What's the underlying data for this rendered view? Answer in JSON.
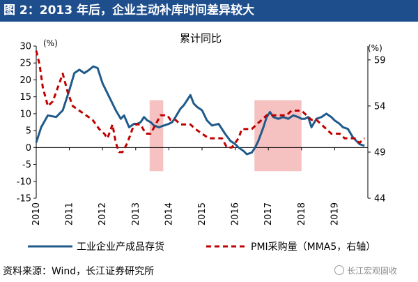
{
  "header": {
    "title": "图 2：2013 年后，企业主动补库时间差异较大"
  },
  "source": {
    "text": "资料来源：Wind，长江证券研究所"
  },
  "watermark": {
    "text": "长江宏观固收"
  },
  "colors": {
    "header_bg": "#1e4e8c",
    "series1": "#1f5a8a",
    "series2": "#c00000",
    "shade": "#f4b6b6"
  },
  "chart_data": {
    "type": "line",
    "title": "累计同比",
    "left_axis": {
      "unit": "(%)",
      "ylim": [
        -15,
        30
      ],
      "ticks": [
        -15,
        -10,
        -5,
        0,
        5,
        10,
        15,
        20,
        25,
        30
      ]
    },
    "right_axis": {
      "unit": "(%)",
      "ylim": [
        44,
        60.5
      ],
      "ticks": [
        44,
        49,
        54,
        59
      ]
    },
    "x_ticks": [
      "2010",
      "2011",
      "2012",
      "2013",
      "2014",
      "2015",
      "2016",
      "2017",
      "2018",
      "2019"
    ],
    "shaded_periods": [
      {
        "start": 2013.42,
        "end": 2013.83,
        "ymin": -7,
        "ymax": 14
      },
      {
        "start": 2016.58,
        "end": 2018.0,
        "ymin": -7,
        "ymax": 14
      }
    ],
    "series": [
      {
        "name": "工业企业产成品存货",
        "axis": "left",
        "style": "solid",
        "points": [
          [
            2010.0,
            1.5
          ],
          [
            2010.15,
            6
          ],
          [
            2010.35,
            9.5
          ],
          [
            2010.6,
            9
          ],
          [
            2010.8,
            11
          ],
          [
            2011.0,
            17
          ],
          [
            2011.15,
            22
          ],
          [
            2011.3,
            23
          ],
          [
            2011.45,
            22
          ],
          [
            2011.6,
            23
          ],
          [
            2011.72,
            24
          ],
          [
            2011.85,
            23.5
          ],
          [
            2012.0,
            19
          ],
          [
            2012.2,
            15
          ],
          [
            2012.4,
            11
          ],
          [
            2012.55,
            8.5
          ],
          [
            2012.65,
            9.5
          ],
          [
            2012.8,
            6
          ],
          [
            2012.95,
            7
          ],
          [
            2013.05,
            7
          ],
          [
            2013.15,
            7.5
          ],
          [
            2013.25,
            9
          ],
          [
            2013.35,
            8
          ],
          [
            2013.45,
            7.5
          ],
          [
            2013.55,
            6.5
          ],
          [
            2013.7,
            6
          ],
          [
            2013.85,
            6.5
          ],
          [
            2014.0,
            7
          ],
          [
            2014.1,
            7.5
          ],
          [
            2014.2,
            9
          ],
          [
            2014.35,
            11.5
          ],
          [
            2014.45,
            12.5
          ],
          [
            2014.55,
            14
          ],
          [
            2014.65,
            15.5
          ],
          [
            2014.75,
            13
          ],
          [
            2014.85,
            12
          ],
          [
            2015.0,
            11
          ],
          [
            2015.15,
            8
          ],
          [
            2015.3,
            6.5
          ],
          [
            2015.5,
            7
          ],
          [
            2015.7,
            4
          ],
          [
            2015.85,
            2
          ],
          [
            2016.0,
            1
          ],
          [
            2016.1,
            0
          ],
          [
            2016.25,
            -1
          ],
          [
            2016.35,
            -2
          ],
          [
            2016.5,
            -1.5
          ],
          [
            2016.6,
            0
          ],
          [
            2016.7,
            2
          ],
          [
            2016.85,
            6
          ],
          [
            2016.95,
            9
          ],
          [
            2017.05,
            10.5
          ],
          [
            2017.15,
            9
          ],
          [
            2017.3,
            8.5
          ],
          [
            2017.45,
            9
          ],
          [
            2017.6,
            8.5
          ],
          [
            2017.75,
            9.5
          ],
          [
            2017.9,
            9
          ],
          [
            2018.0,
            8.5
          ],
          [
            2018.1,
            8.5
          ],
          [
            2018.2,
            9
          ],
          [
            2018.3,
            6
          ],
          [
            2018.45,
            8.5
          ],
          [
            2018.6,
            9
          ],
          [
            2018.75,
            10
          ],
          [
            2018.9,
            9
          ],
          [
            2019.0,
            8
          ],
          [
            2019.15,
            7
          ],
          [
            2019.25,
            6
          ],
          [
            2019.4,
            5.5
          ],
          [
            2019.55,
            3
          ],
          [
            2019.75,
            1
          ],
          [
            2019.9,
            0.5
          ]
        ]
      },
      {
        "name": "PMI采购量（MMA5，右轴）",
        "axis": "right",
        "style": "dashed",
        "points": [
          [
            2010.0,
            60
          ],
          [
            2010.1,
            58.5
          ],
          [
            2010.2,
            56
          ],
          [
            2010.35,
            54
          ],
          [
            2010.5,
            54.5
          ],
          [
            2010.65,
            56
          ],
          [
            2010.8,
            57.5
          ],
          [
            2010.95,
            55.5
          ],
          [
            2011.1,
            54
          ],
          [
            2011.3,
            53.5
          ],
          [
            2011.5,
            53
          ],
          [
            2011.7,
            52.5
          ],
          [
            2011.9,
            51.5
          ],
          [
            2012.05,
            51
          ],
          [
            2012.15,
            50.5
          ],
          [
            2012.3,
            52
          ],
          [
            2012.4,
            50
          ],
          [
            2012.5,
            49
          ],
          [
            2012.6,
            49
          ],
          [
            2012.75,
            50
          ],
          [
            2012.9,
            51.5
          ],
          [
            2013.0,
            52
          ],
          [
            2013.15,
            52
          ],
          [
            2013.3,
            51
          ],
          [
            2013.45,
            51
          ],
          [
            2013.6,
            52
          ],
          [
            2013.75,
            53
          ],
          [
            2013.95,
            53
          ],
          [
            2014.05,
            52.5
          ],
          [
            2014.2,
            52.5
          ],
          [
            2014.35,
            52
          ],
          [
            2014.5,
            52
          ],
          [
            2014.65,
            52
          ],
          [
            2014.8,
            51.5
          ],
          [
            2015.0,
            51
          ],
          [
            2015.2,
            50.5
          ],
          [
            2015.4,
            50.5
          ],
          [
            2015.6,
            50.5
          ],
          [
            2015.75,
            49.5
          ],
          [
            2015.9,
            49.5
          ],
          [
            2016.0,
            50
          ],
          [
            2016.1,
            50.5
          ],
          [
            2016.2,
            51.5
          ],
          [
            2016.35,
            51.5
          ],
          [
            2016.5,
            51.5
          ],
          [
            2016.65,
            52
          ],
          [
            2016.8,
            52.5
          ],
          [
            2016.95,
            53
          ],
          [
            2017.1,
            53
          ],
          [
            2017.25,
            53
          ],
          [
            2017.4,
            53
          ],
          [
            2017.55,
            53
          ],
          [
            2017.7,
            53.5
          ],
          [
            2017.85,
            53.5
          ],
          [
            2018.0,
            53.5
          ],
          [
            2018.15,
            53
          ],
          [
            2018.3,
            52.5
          ],
          [
            2018.45,
            52.5
          ],
          [
            2018.6,
            52
          ],
          [
            2018.75,
            51.5
          ],
          [
            2018.9,
            51
          ],
          [
            2019.0,
            51
          ],
          [
            2019.15,
            51
          ],
          [
            2019.3,
            50.5
          ],
          [
            2019.45,
            50.5
          ],
          [
            2019.6,
            50.5
          ],
          [
            2019.75,
            50
          ],
          [
            2019.9,
            50.5
          ]
        ]
      }
    ],
    "legend": {
      "placement": "bottom"
    }
  }
}
